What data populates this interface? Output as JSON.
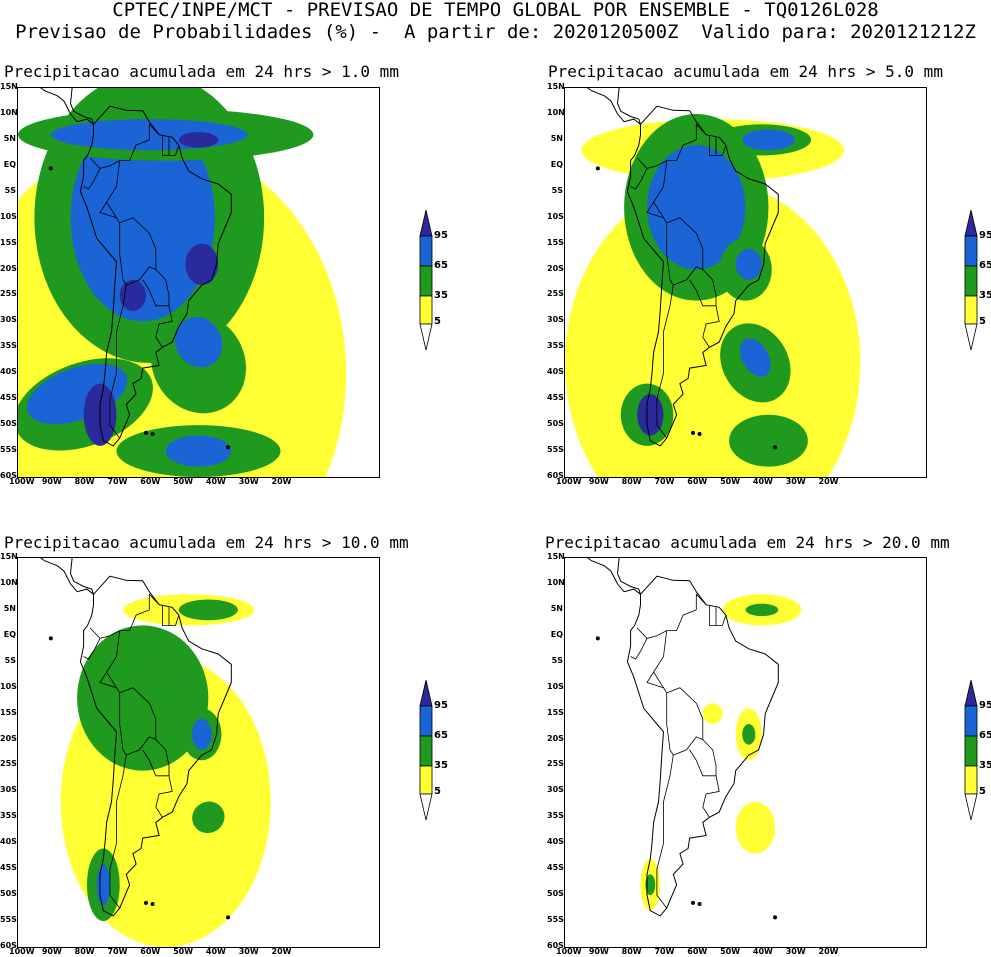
{
  "header": {
    "line1": "CPTEC/INPE/MCT - PREVISAO DE TEMPO GLOBAL POR ENSEMBLE - TQ0126L028",
    "line2": "Previsao de Probabilidades (%) -  A partir de: 2020120500Z  Valido para: 2020121212Z"
  },
  "panels": [
    {
      "title": "Precipitacao acumulada em 24 hrs > 1.0 mm"
    },
    {
      "title": "Precipitacao acumulada em 24 hrs > 5.0 mm"
    },
    {
      "title": "Precipitacao acumulada em 24 hrs > 10.0 mm"
    },
    {
      "title": "Precipitacao acumulada em 24 hrs > 20.0 mm"
    }
  ],
  "lat_labels": [
    "15N",
    "10N",
    "5N",
    "EQ",
    "5S",
    "10S",
    "15S",
    "20S",
    "25S",
    "30S",
    "35S",
    "40S",
    "45S",
    "50S",
    "55S",
    "60S"
  ],
  "lon_labels": [
    "100W",
    "90W",
    "80W",
    "70W",
    "60W",
    "50W",
    "40W",
    "30W",
    "20W"
  ],
  "colorbar": {
    "labels": [
      "95",
      "65",
      "35",
      "5"
    ],
    "colors": {
      "yellow": "#ffff33",
      "green": "#1f9a1f",
      "blue": "#1a64d6",
      "navy": "#2a2a9c"
    }
  }
}
